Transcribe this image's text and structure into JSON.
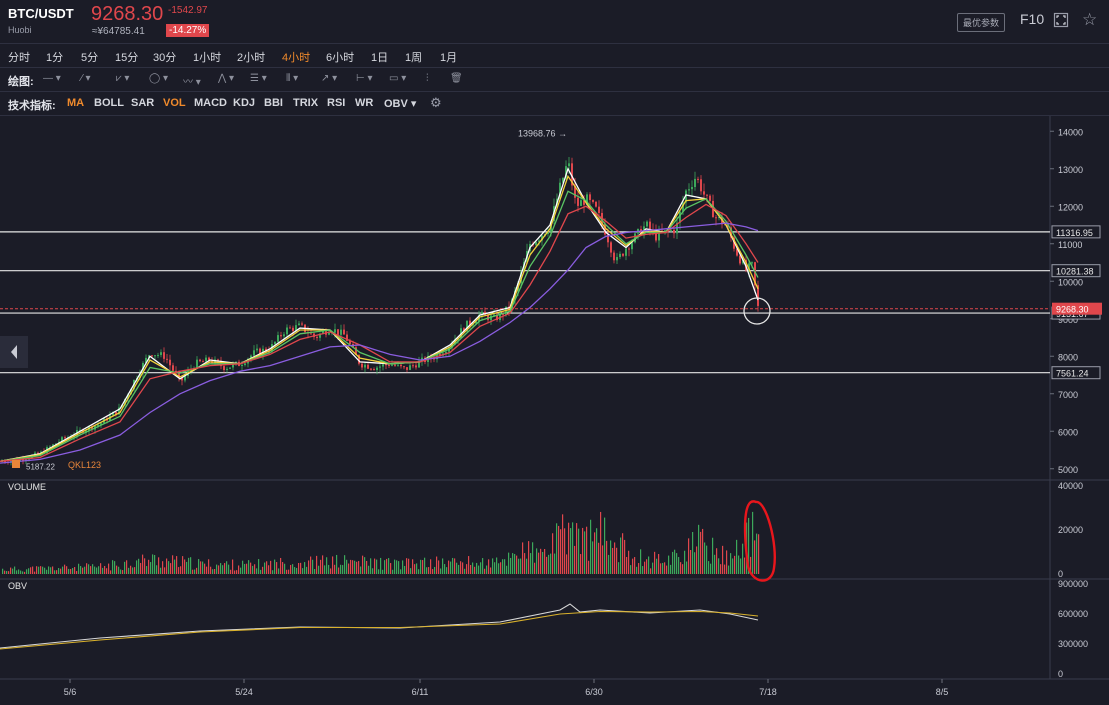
{
  "header": {
    "pair": "BTC/USDT",
    "exchange": "Huobi",
    "price": "9268.30",
    "cny": "≈¥64785.41",
    "change": "-1542.97",
    "change_pct": "-14.27%",
    "param_button": "最优参数",
    "f10_label": "F10",
    "fullscreen_icon": "fullscreen-icon",
    "star_icon": "star-icon"
  },
  "periods": [
    "分时",
    "1分",
    "5分",
    "15分",
    "30分",
    "1小时",
    "2小时",
    "4小时",
    "6小时",
    "1日",
    "1周",
    "1月"
  ],
  "active_period": "4小时",
  "drawing_label": "绘图:",
  "drawing_tools": [
    "line-tool-icon",
    "pen-tool-icon",
    "channel-tool-icon",
    "shape-tool-icon",
    "wave-tool-icon",
    "pattern-tool-icon",
    "fib-tool-icon",
    "gann-tool-icon",
    "arrow-tool-icon",
    "measure-tool-icon",
    "note-tool-icon",
    "volume-profile-icon",
    "trash-icon"
  ],
  "indicators_label": "技术指标:",
  "indicators": [
    "MA",
    "BOLL",
    "SAR",
    "VOL",
    "MACD",
    "KDJ",
    "BBI",
    "TRIX",
    "RSI",
    "WR",
    "OBV ▾"
  ],
  "active_indicators": [
    "MA",
    "VOL"
  ],
  "settings_icon": "gear-icon",
  "collapse_icon": "chevron-left-icon",
  "watermark": "QKL123",
  "chart_data": [
    {
      "type": "candlestick",
      "pane": "price",
      "ylim": [
        4700,
        14300
      ],
      "yticks": [
        5000,
        6000,
        7000,
        8000,
        9000,
        10000,
        11000,
        12000,
        13000,
        14000
      ],
      "xticks": [
        "5/6",
        "5/24",
        "6/11",
        "6/30",
        "7/18",
        "8/5"
      ],
      "annotation_high": "13968.76 →",
      "annotation_low": "5187.22",
      "horizontal_levels": [
        11316.95,
        10281.38,
        9151.67,
        7561.24
      ],
      "current_price": 9268.3,
      "price_samples": [
        [
          0,
          5200
        ],
        [
          20,
          5250
        ],
        [
          40,
          5400
        ],
        [
          60,
          5750
        ],
        [
          80,
          6000
        ],
        [
          100,
          6200
        ],
        [
          120,
          6600
        ],
        [
          135,
          7400
        ],
        [
          150,
          8100
        ],
        [
          165,
          8000
        ],
        [
          180,
          7300
        ],
        [
          195,
          7800
        ],
        [
          210,
          7900
        ],
        [
          225,
          7700
        ],
        [
          240,
          7800
        ],
        [
          255,
          8100
        ],
        [
          270,
          8200
        ],
        [
          285,
          8700
        ],
        [
          300,
          8800
        ],
        [
          315,
          8500
        ],
        [
          330,
          8750
        ],
        [
          345,
          8550
        ],
        [
          360,
          7800
        ],
        [
          375,
          7700
        ],
        [
          390,
          7800
        ],
        [
          405,
          7650
        ],
        [
          420,
          7850
        ],
        [
          435,
          8000
        ],
        [
          450,
          8300
        ],
        [
          465,
          8800
        ],
        [
          480,
          9100
        ],
        [
          495,
          9000
        ],
        [
          510,
          9300
        ],
        [
          520,
          10100
        ],
        [
          530,
          11000
        ],
        [
          540,
          11200
        ],
        [
          550,
          11500
        ],
        [
          560,
          12500
        ],
        [
          568,
          13200
        ],
        [
          576,
          12000
        ],
        [
          586,
          12200
        ],
        [
          596,
          11900
        ],
        [
          606,
          11300
        ],
        [
          616,
          10500
        ],
        [
          626,
          10900
        ],
        [
          636,
          11200
        ],
        [
          646,
          11500
        ],
        [
          656,
          11200
        ],
        [
          666,
          11300
        ],
        [
          676,
          11400
        ],
        [
          686,
          12400
        ],
        [
          696,
          12800
        ],
        [
          706,
          12200
        ],
        [
          716,
          11700
        ],
        [
          726,
          11500
        ],
        [
          736,
          10800
        ],
        [
          746,
          10300
        ],
        [
          752,
          10400
        ],
        [
          758,
          9300
        ]
      ],
      "ma_series": [
        {
          "color": "#ffffff",
          "points": [
            [
              0,
              5200
            ],
            [
              40,
              5400
            ],
            [
              80,
              6000
            ],
            [
              120,
              6600
            ],
            [
              150,
              8000
            ],
            [
              180,
              7400
            ],
            [
              210,
              7900
            ],
            [
              240,
              7800
            ],
            [
              270,
              8200
            ],
            [
              300,
              8750
            ],
            [
              330,
              8700
            ],
            [
              360,
              7850
            ],
            [
              390,
              7800
            ],
            [
              420,
              7850
            ],
            [
              450,
              8300
            ],
            [
              480,
              9100
            ],
            [
              510,
              9300
            ],
            [
              530,
              10900
            ],
            [
              550,
              11500
            ],
            [
              568,
              13000
            ],
            [
              586,
              12100
            ],
            [
              606,
              11300
            ],
            [
              626,
              10900
            ],
            [
              646,
              11400
            ],
            [
              666,
              11300
            ],
            [
              686,
              12300
            ],
            [
              706,
              12200
            ],
            [
              726,
              11500
            ],
            [
              746,
              10400
            ],
            [
              758,
              9500
            ]
          ]
        },
        {
          "color": "#f2d03a",
          "points": [
            [
              0,
              5200
            ],
            [
              40,
              5380
            ],
            [
              80,
              5950
            ],
            [
              120,
              6500
            ],
            [
              150,
              7900
            ],
            [
              180,
              7450
            ],
            [
              210,
              7850
            ],
            [
              240,
              7800
            ],
            [
              270,
              8150
            ],
            [
              300,
              8700
            ],
            [
              330,
              8700
            ],
            [
              360,
              7950
            ],
            [
              390,
              7800
            ],
            [
              420,
              7850
            ],
            [
              450,
              8250
            ],
            [
              480,
              9050
            ],
            [
              510,
              9250
            ],
            [
              530,
              10700
            ],
            [
              550,
              11400
            ],
            [
              568,
              12800
            ],
            [
              586,
              12100
            ],
            [
              606,
              11400
            ],
            [
              626,
              10950
            ],
            [
              646,
              11350
            ],
            [
              666,
              11300
            ],
            [
              686,
              12150
            ],
            [
              706,
              12200
            ],
            [
              726,
              11500
            ],
            [
              746,
              10500
            ],
            [
              758,
              9800
            ]
          ]
        },
        {
          "color": "#5ac463",
          "points": [
            [
              0,
              5200
            ],
            [
              40,
              5350
            ],
            [
              80,
              5900
            ],
            [
              120,
              6400
            ],
            [
              150,
              7700
            ],
            [
              180,
              7550
            ],
            [
              210,
              7800
            ],
            [
              240,
              7800
            ],
            [
              270,
              8100
            ],
            [
              300,
              8600
            ],
            [
              330,
              8700
            ],
            [
              360,
              8100
            ],
            [
              390,
              7800
            ],
            [
              420,
              7850
            ],
            [
              450,
              8200
            ],
            [
              480,
              8950
            ],
            [
              510,
              9200
            ],
            [
              530,
              10400
            ],
            [
              550,
              11200
            ],
            [
              568,
              12400
            ],
            [
              586,
              12150
            ],
            [
              606,
              11500
            ],
            [
              626,
              11000
            ],
            [
              646,
              11300
            ],
            [
              666,
              11300
            ],
            [
              686,
              11950
            ],
            [
              706,
              12200
            ],
            [
              726,
              11600
            ],
            [
              746,
              10700
            ],
            [
              758,
              10100
            ]
          ]
        },
        {
          "color": "#e0474c",
          "points": [
            [
              0,
              5200
            ],
            [
              40,
              5300
            ],
            [
              80,
              5800
            ],
            [
              120,
              6250
            ],
            [
              150,
              7400
            ],
            [
              180,
              7600
            ],
            [
              210,
              7750
            ],
            [
              240,
              7800
            ],
            [
              270,
              8050
            ],
            [
              300,
              8450
            ],
            [
              330,
              8650
            ],
            [
              360,
              8300
            ],
            [
              390,
              7850
            ],
            [
              420,
              7850
            ],
            [
              450,
              8100
            ],
            [
              480,
              8800
            ],
            [
              510,
              9150
            ],
            [
              530,
              9900
            ],
            [
              550,
              10800
            ],
            [
              568,
              11800
            ],
            [
              586,
              12000
            ],
            [
              606,
              11600
            ],
            [
              626,
              11150
            ],
            [
              646,
              11250
            ],
            [
              666,
              11300
            ],
            [
              686,
              11700
            ],
            [
              706,
              12050
            ],
            [
              726,
              11750
            ],
            [
              746,
              11000
            ],
            [
              758,
              10500
            ]
          ]
        },
        {
          "color": "#8a5de0",
          "points": [
            [
              0,
              5150
            ],
            [
              40,
              5250
            ],
            [
              80,
              5500
            ],
            [
              120,
              5900
            ],
            [
              150,
              6500
            ],
            [
              180,
              7000
            ],
            [
              210,
              7350
            ],
            [
              240,
              7600
            ],
            [
              270,
              7750
            ],
            [
              300,
              8000
            ],
            [
              330,
              8250
            ],
            [
              360,
              8300
            ],
            [
              390,
              8050
            ],
            [
              420,
              7900
            ],
            [
              450,
              8000
            ],
            [
              480,
              8400
            ],
            [
              510,
              8900
            ],
            [
              530,
              9300
            ],
            [
              550,
              9800
            ],
            [
              568,
              10300
            ],
            [
              586,
              10900
            ],
            [
              606,
              11200
            ],
            [
              626,
              11300
            ],
            [
              646,
              11350
            ],
            [
              666,
              11400
            ],
            [
              686,
              11450
            ],
            [
              706,
              11500
            ],
            [
              726,
              11550
            ],
            [
              746,
              11450
            ],
            [
              758,
              11350
            ]
          ]
        }
      ]
    },
    {
      "type": "bar",
      "pane": "volume",
      "title": "VOLUME",
      "ylim": [
        0,
        40000
      ],
      "yticks": [
        0,
        20000,
        40000
      ],
      "volume_samples": [
        [
          0,
          2500
        ],
        [
          100,
          4000
        ],
        [
          150,
          8000
        ],
        [
          200,
          5500
        ],
        [
          250,
          5000
        ],
        [
          300,
          6500
        ],
        [
          350,
          7000
        ],
        [
          400,
          5500
        ],
        [
          450,
          6500
        ],
        [
          500,
          6000
        ],
        [
          520,
          14000
        ],
        [
          540,
          10000
        ],
        [
          560,
          20000
        ],
        [
          570,
          27000
        ],
        [
          580,
          18000
        ],
        [
          600,
          22000
        ],
        [
          620,
          15000
        ],
        [
          640,
          9000
        ],
        [
          660,
          8000
        ],
        [
          680,
          11000
        ],
        [
          700,
          18000
        ],
        [
          720,
          10000
        ],
        [
          740,
          14000
        ],
        [
          755,
          26000
        ]
      ]
    },
    {
      "type": "line",
      "pane": "obv",
      "title": "OBV",
      "ylim": [
        0,
        900000
      ],
      "yticks": [
        0,
        300000,
        600000,
        900000
      ],
      "series": [
        {
          "color": "#d8d8d8",
          "points": [
            [
              0,
              260000
            ],
            [
              100,
              360000
            ],
            [
              200,
              430000
            ],
            [
              300,
              470000
            ],
            [
              400,
              460000
            ],
            [
              500,
              520000
            ],
            [
              560,
              640000
            ],
            [
              570,
              700000
            ],
            [
              580,
              620000
            ],
            [
              600,
              640000
            ],
            [
              650,
              610000
            ],
            [
              700,
              640000
            ],
            [
              730,
              600000
            ],
            [
              758,
              540000
            ]
          ]
        },
        {
          "color": "#d9b12c",
          "points": [
            [
              0,
              250000
            ],
            [
              100,
              340000
            ],
            [
              200,
              420000
            ],
            [
              300,
              465000
            ],
            [
              400,
              465000
            ],
            [
              500,
              500000
            ],
            [
              560,
              600000
            ],
            [
              600,
              625000
            ],
            [
              650,
              620000
            ],
            [
              700,
              625000
            ],
            [
              730,
              610000
            ],
            [
              758,
              580000
            ]
          ]
        }
      ]
    }
  ]
}
